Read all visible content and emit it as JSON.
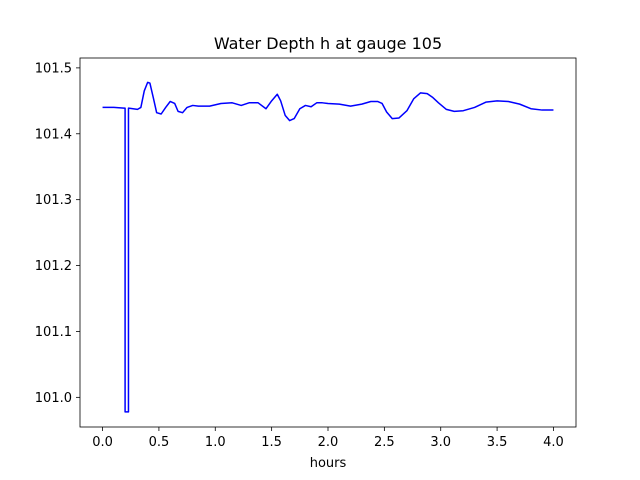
{
  "chart_data": {
    "type": "line",
    "title": "Water Depth h at gauge 105",
    "xlabel": "hours",
    "ylabel": "",
    "xlim": [
      -0.2,
      4.2
    ],
    "ylim": [
      100.955,
      101.515
    ],
    "xticks": [
      0.0,
      0.5,
      1.0,
      1.5,
      2.0,
      2.5,
      3.0,
      3.5,
      4.0
    ],
    "xtick_labels": [
      "0.0",
      "0.5",
      "1.0",
      "1.5",
      "2.0",
      "2.5",
      "3.0",
      "3.5",
      "4.0"
    ],
    "yticks": [
      101.0,
      101.1,
      101.2,
      101.3,
      101.4,
      101.5
    ],
    "ytick_labels": [
      "101.0",
      "101.1",
      "101.2",
      "101.3",
      "101.4",
      "101.5"
    ],
    "grid": false,
    "series": [
      {
        "name": "",
        "color": "#0000ff",
        "x": [
          0.0,
          0.1,
          0.19,
          0.2,
          0.2,
          0.23,
          0.23,
          0.27,
          0.31,
          0.34,
          0.37,
          0.4,
          0.42,
          0.45,
          0.48,
          0.52,
          0.56,
          0.6,
          0.64,
          0.67,
          0.71,
          0.75,
          0.8,
          0.85,
          0.95,
          1.05,
          1.15,
          1.23,
          1.3,
          1.38,
          1.45,
          1.5,
          1.55,
          1.58,
          1.62,
          1.66,
          1.7,
          1.75,
          1.8,
          1.85,
          1.9,
          1.95,
          2.0,
          2.1,
          2.2,
          2.3,
          2.38,
          2.44,
          2.48,
          2.52,
          2.57,
          2.63,
          2.7,
          2.76,
          2.82,
          2.88,
          2.93,
          2.98,
          3.05,
          3.12,
          3.2,
          3.3,
          3.4,
          3.5,
          3.6,
          3.7,
          3.8,
          3.9,
          4.0
        ],
        "y": [
          101.44,
          101.44,
          101.439,
          101.439,
          100.978,
          100.978,
          101.439,
          101.438,
          101.437,
          101.44,
          101.465,
          101.478,
          101.477,
          101.455,
          101.432,
          101.43,
          101.44,
          101.449,
          101.446,
          101.434,
          101.432,
          101.44,
          101.443,
          101.442,
          101.442,
          101.446,
          101.447,
          101.443,
          101.447,
          101.447,
          101.438,
          101.45,
          101.46,
          101.45,
          101.428,
          101.42,
          101.423,
          101.438,
          101.443,
          101.441,
          101.447,
          101.447,
          101.446,
          101.445,
          101.442,
          101.445,
          101.449,
          101.449,
          101.446,
          101.433,
          101.423,
          101.424,
          101.435,
          101.453,
          101.462,
          101.461,
          101.455,
          101.447,
          101.437,
          101.434,
          101.435,
          101.44,
          101.448,
          101.45,
          101.449,
          101.445,
          101.438,
          101.436,
          101.436
        ]
      }
    ]
  }
}
